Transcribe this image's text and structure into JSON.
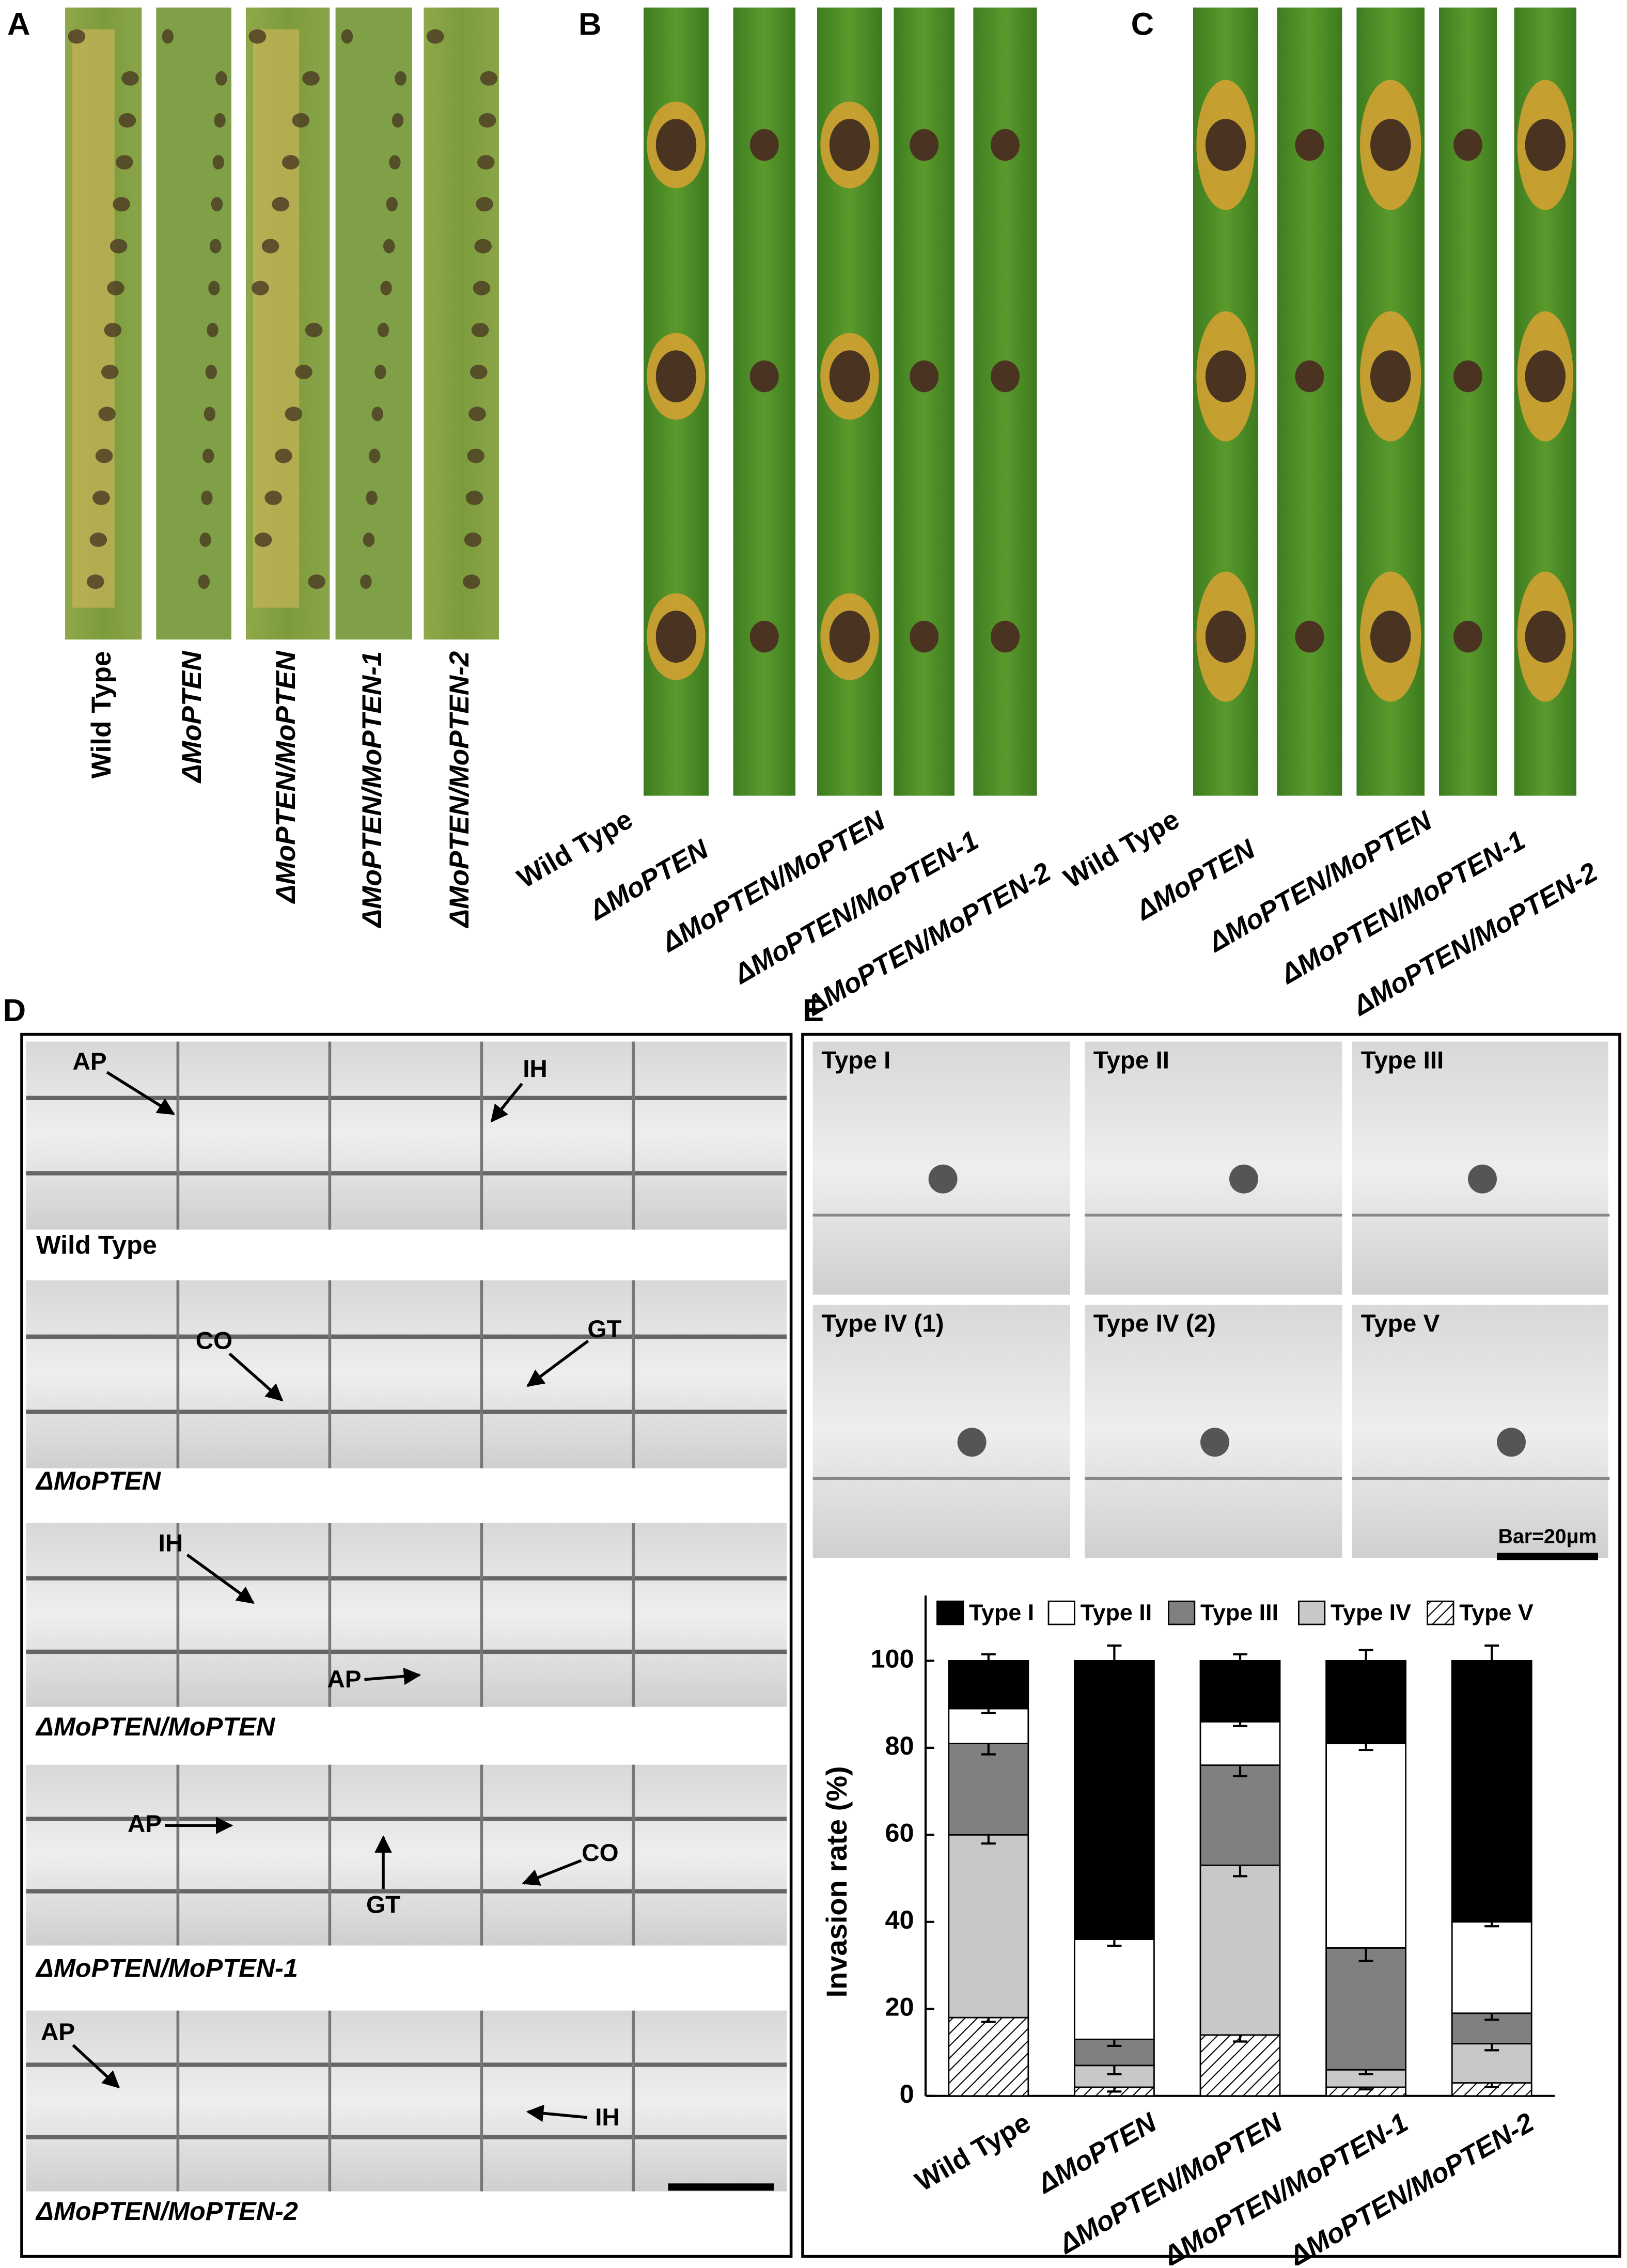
{
  "panels": {
    "A": {
      "label": "A",
      "leaf_labels": [
        "Wild Type",
        "ΔMoPTEN",
        "ΔMoPTEN/MoPTEN",
        "ΔMoPTEN/MoPTEN-1",
        "ΔMoPTEN/MoPTEN-2"
      ]
    },
    "B": {
      "label": "B",
      "leaf_labels": [
        "Wild Type",
        "ΔMoPTEN",
        "ΔMoPTEN/MoPTEN",
        "ΔMoPTEN/MoPTEN-1",
        "ΔMoPTEN/MoPTEN-2"
      ]
    },
    "C": {
      "label": "C",
      "leaf_labels": [
        "Wild Type",
        "ΔMoPTEN",
        "ΔMoPTEN/MoPTEN",
        "ΔMoPTEN/MoPTEN-1",
        "ΔMoPTEN/MoPTEN-2"
      ]
    },
    "D": {
      "label": "D",
      "images": [
        {
          "caption": "Wild Type",
          "annotations": [
            "AP",
            "IH"
          ]
        },
        {
          "caption": "ΔMoPTEN",
          "annotations": [
            "CO",
            "GT"
          ]
        },
        {
          "caption": "ΔMoPTEN/MoPTEN",
          "annotations": [
            "IH",
            "AP"
          ]
        },
        {
          "caption": "ΔMoPTEN/MoPTEN-1",
          "annotations": [
            "AP",
            "GT",
            "CO"
          ]
        },
        {
          "caption": "ΔMoPTEN/MoPTEN-2",
          "annotations": [
            "AP",
            "IH"
          ]
        }
      ]
    },
    "E": {
      "label": "E",
      "images": [
        "Type I",
        "Type II",
        "Type III",
        "Type IV (1)",
        "Type IV (2)",
        "Type V"
      ],
      "scale_bar": "Bar=20μm"
    }
  },
  "chart_data": {
    "type": "stacked_bar",
    "y_label": "Invasion rate (%)",
    "categories": [
      "Wild Type",
      "ΔMoPTEN",
      "ΔMoPTEN/MoPTEN",
      "ΔMoPTEN/MoPTEN-1",
      "ΔMoPTEN/MoPTEN-2"
    ],
    "series": [
      {
        "name": "Type V",
        "color": "#000000",
        "hatch": true,
        "values": [
          18,
          2,
          14,
          2,
          3
        ],
        "errors": [
          1,
          1,
          1.5,
          0.5,
          1
        ]
      },
      {
        "name": "Type IV",
        "color": "#c8c8c8",
        "values": [
          42,
          5,
          39,
          4,
          9
        ],
        "errors": [
          2,
          2,
          2.5,
          1,
          1.5
        ]
      },
      {
        "name": "Type III",
        "color": "#808080",
        "values": [
          21,
          6,
          23,
          28,
          7
        ],
        "errors": [
          2.5,
          1.5,
          2.5,
          3,
          1.5
        ]
      },
      {
        "name": "Type II",
        "color": "#ffffff",
        "values": [
          8,
          23,
          10,
          47,
          21
        ],
        "errors": [
          1,
          1.5,
          1,
          1.5,
          1
        ]
      },
      {
        "name": "Type I",
        "color": "#000000",
        "values": [
          11,
          64,
          14,
          19,
          60
        ],
        "errors": [
          1.5,
          3.5,
          1.5,
          2.5,
          3.5
        ]
      }
    ],
    "legend_order": [
      4,
      3,
      2,
      1,
      0
    ],
    "ylim": [
      0,
      115
    ],
    "yticks": [
      0,
      20,
      40,
      60,
      80,
      100
    ]
  }
}
